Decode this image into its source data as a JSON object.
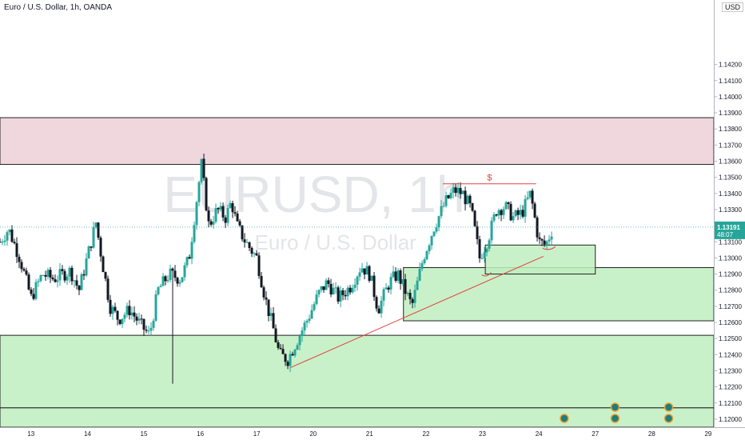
{
  "header": {
    "title": "Euro / U.S. Dollar, 1h, OANDA"
  },
  "currency_label": "USD",
  "watermark": {
    "symbol": "EURUSD, 1h",
    "name": "Euro / U.S. Dollar"
  },
  "colors": {
    "up": "#26a69a",
    "down": "#131722",
    "supply_zone": "#f0d6dd",
    "demand_zone": "#bfeec0",
    "trendline": "#e04040",
    "price_label_bg": "#26a69a"
  },
  "price_label": {
    "price": "1.13191",
    "countdown": "48:07"
  },
  "annotations": {
    "dollar_sign": "$"
  },
  "chart_data": {
    "type": "candlestick",
    "title": "Euro / U.S. Dollar, 1h, OANDA",
    "xlabel": "",
    "ylabel": "",
    "ylim": [
      1.1195,
      1.146
    ],
    "y_ticks": [
      "1.14200",
      "1.14100",
      "1.14000",
      "1.13900",
      "1.13800",
      "1.13700",
      "1.13600",
      "1.13500",
      "1.13400",
      "1.13300",
      "1.13200",
      "1.13100",
      "1.13000",
      "1.12900",
      "1.12800",
      "1.12700",
      "1.12600",
      "1.12500",
      "1.12400",
      "1.12300",
      "1.12200",
      "1.12100",
      "1.12000"
    ],
    "x_ticks": [
      "13",
      "14",
      "15",
      "16",
      "17",
      "20",
      "21",
      "22",
      "23",
      "24",
      "27",
      "28",
      "29"
    ],
    "x_tick_positions": [
      0.8,
      1.8,
      2.8,
      3.8,
      4.8,
      5.8,
      6.8,
      7.8,
      8.8,
      9.8,
      10.8,
      11.8,
      12.8
    ],
    "xlim": [
      0.25,
      12.9
    ],
    "last_price": 1.13191,
    "close_path": [
      [
        0.25,
        1.131
      ],
      [
        0.4,
        1.1318
      ],
      [
        0.6,
        1.13
      ],
      [
        0.8,
        1.1275
      ],
      [
        1.0,
        1.129
      ],
      [
        1.2,
        1.1287
      ],
      [
        1.5,
        1.1292
      ],
      [
        1.65,
        1.128
      ],
      [
        1.85,
        1.1308
      ],
      [
        1.95,
        1.1322
      ],
      [
        2.05,
        1.13
      ],
      [
        2.2,
        1.127
      ],
      [
        2.35,
        1.1262
      ],
      [
        2.55,
        1.1268
      ],
      [
        2.75,
        1.1258
      ],
      [
        2.9,
        1.1252
      ],
      [
        3.05,
        1.128
      ],
      [
        3.25,
        1.129
      ],
      [
        3.45,
        1.1287
      ],
      [
        3.6,
        1.13
      ],
      [
        3.75,
        1.134
      ],
      [
        3.82,
        1.1358
      ],
      [
        3.95,
        1.132
      ],
      [
        4.1,
        1.133
      ],
      [
        4.25,
        1.1325
      ],
      [
        4.35,
        1.1335
      ],
      [
        4.45,
        1.132
      ],
      [
        4.6,
        1.131
      ],
      [
        4.8,
        1.13
      ],
      [
        4.95,
        1.1275
      ],
      [
        5.1,
        1.1255
      ],
      [
        5.2,
        1.124
      ],
      [
        5.35,
        1.1237
      ],
      [
        5.5,
        1.1248
      ],
      [
        5.7,
        1.1262
      ],
      [
        5.9,
        1.1278
      ],
      [
        6.05,
        1.1285
      ],
      [
        6.25,
        1.1275
      ],
      [
        6.45,
        1.1282
      ],
      [
        6.65,
        1.1295
      ],
      [
        6.8,
        1.129
      ],
      [
        6.95,
        1.1268
      ],
      [
        7.15,
        1.1285
      ],
      [
        7.3,
        1.129
      ],
      [
        7.55,
        1.127
      ],
      [
        7.75,
        1.13
      ],
      [
        7.95,
        1.132
      ],
      [
        8.15,
        1.1335
      ],
      [
        8.3,
        1.1342
      ],
      [
        8.45,
        1.134
      ],
      [
        8.6,
        1.133
      ],
      [
        8.75,
        1.13
      ],
      [
        8.9,
        1.1312
      ],
      [
        9.05,
        1.133
      ],
      [
        9.2,
        1.1332
      ],
      [
        9.35,
        1.1325
      ],
      [
        9.5,
        1.1328
      ],
      [
        9.65,
        1.134
      ],
      [
        9.8,
        1.131
      ],
      [
        9.92,
        1.1308
      ],
      [
        10.05,
        1.1319
      ]
    ],
    "series": [
      {
        "name": "",
        "ohlc": [
          {
            "x": 3.82,
            "high": 1.136
          },
          {
            "x": 3.3,
            "low": 1.1222
          },
          {
            "x": 5.3,
            "low": 1.1233
          },
          {
            "x": 8.45,
            "high": 1.1342
          }
        ]
      }
    ],
    "zones": [
      {
        "kind": "supply",
        "x_start": 0.25,
        "x_end": 12.9,
        "y_top": 1.1387,
        "y_bottom": 1.1358
      },
      {
        "kind": "demand",
        "x_start": 0.25,
        "x_end": 12.9,
        "y_top": 1.1252,
        "y_bottom": 1.1207
      },
      {
        "kind": "demand",
        "x_start": 0.25,
        "x_end": 12.9,
        "y_top": 1.1207,
        "y_bottom": 1.1195
      },
      {
        "kind": "demand",
        "x_start": 7.4,
        "x_end": 12.9,
        "y_top": 1.1294,
        "y_bottom": 1.1261
      },
      {
        "kind": "demand",
        "x_start": 8.85,
        "x_end": 10.8,
        "y_top": 1.1308,
        "y_bottom": 1.129
      }
    ],
    "trendline": {
      "x1": 5.4,
      "y1": 1.1232,
      "x2": 9.88,
      "y2": 1.1301
    },
    "resistance_line": {
      "x1": 8.1,
      "y1": 1.1346,
      "x2": 9.75,
      "y2": 1.1346
    },
    "event_markers": [
      {
        "x": 10.25,
        "row": "bottom"
      },
      {
        "x": 11.15,
        "row": "top"
      },
      {
        "x": 11.15,
        "row": "bottom"
      },
      {
        "x": 12.1,
        "row": "top"
      },
      {
        "x": 12.1,
        "row": "bottom"
      }
    ],
    "grid": false,
    "legend": "none"
  }
}
